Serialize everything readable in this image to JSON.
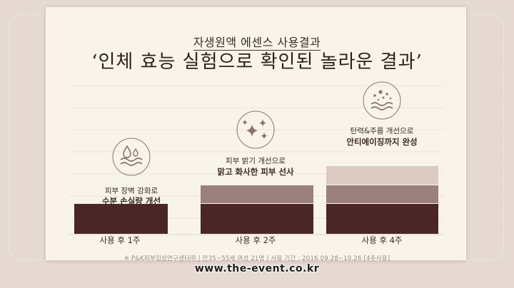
{
  "header": {
    "subtitle": "자생원액 에센스 사용결과",
    "title": "‘인체 효능 실험으로 확인된 놀라운 결과’"
  },
  "chart_data": {
    "type": "bar",
    "stacked": true,
    "categories": [
      "사용 후 1주",
      "사용 후 2주",
      "사용 후 4주"
    ],
    "series": [
      {
        "values": [
          1,
          1,
          1
        ],
        "color": "#4a2726"
      },
      {
        "values": [
          0,
          1,
          1
        ],
        "color": "#9b807d"
      },
      {
        "values": [
          0,
          0,
          1
        ],
        "color": "#dccac2"
      }
    ],
    "annotations": [
      {
        "line1": "피부 장벽 강화로",
        "line2": "수분 손실량 개선",
        "icon": "water-drop-waves-icon"
      },
      {
        "line1": "피부 밝기 개선으로",
        "line2": "맑고 화사한 피부 선사",
        "icon": "sparkle-stars-icon"
      },
      {
        "line1": "탄력&주름 개선으로",
        "line2": "안티에이징까지 완성",
        "icon": "dots-waves-icon"
      }
    ],
    "grid": true,
    "colors": {
      "dark": "#4a2726",
      "mid": "#9b807d",
      "light": "#dccac2",
      "badge": "#8b7370"
    }
  },
  "footnote": "※ P&K피부임상연구센터㈜ | 만35~55세 여성 21명 | 사용 기간 : 2016.09.28~10.26 [4주사용]",
  "watermark": "www.the-event.co.kr"
}
